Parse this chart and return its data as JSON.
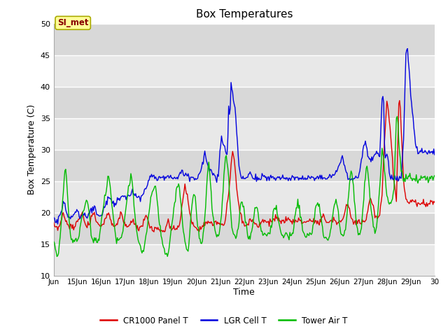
{
  "title": "Box Temperatures",
  "xlabel": "Time",
  "ylabel": "Box Temperature (C)",
  "ylim": [
    10,
    50
  ],
  "yticks": [
    10,
    15,
    20,
    25,
    30,
    35,
    40,
    45,
    50
  ],
  "fig_bg_color": "#ffffff",
  "plot_bg_color": "#e8e8e8",
  "grid_color": "#ffffff",
  "line_colors": {
    "CR1000 Panel T": "#dd0000",
    "LGR Cell T": "#0000dd",
    "Tower Air T": "#00bb00"
  },
  "line_width": 1.0,
  "annotation_text": "SI_met",
  "annotation_color": "#880000",
  "annotation_bg": "#ffff99",
  "annotation_border": "#aaaa00",
  "x_start": 14,
  "x_end": 30,
  "xtick_positions": [
    14,
    15,
    16,
    17,
    18,
    19,
    20,
    21,
    22,
    23,
    24,
    25,
    26,
    27,
    28,
    29,
    30
  ],
  "xtick_labels": [
    "Jun",
    "15Jun",
    "16Jun",
    "17Jun",
    "18Jun",
    "19Jun",
    "20Jun",
    "21Jun",
    "22Jun",
    "23Jun",
    "24Jun",
    "25Jun",
    "26Jun",
    "27Jun",
    "28Jun",
    "29Jun",
    "30"
  ],
  "legend_labels": [
    "CR1000 Panel T",
    "LGR Cell T",
    "Tower Air T"
  ],
  "num_points": 480
}
